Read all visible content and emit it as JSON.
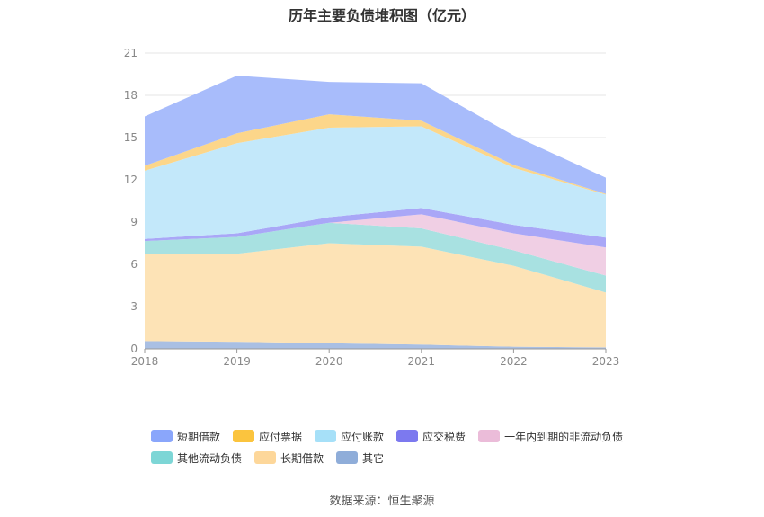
{
  "title": "历年主要负债堆积图（亿元）",
  "source": "数据来源：恒生聚源",
  "chart_data": {
    "type": "area",
    "stacked": true,
    "x": [
      "2018",
      "2019",
      "2020",
      "2021",
      "2022",
      "2023"
    ],
    "ylim": [
      0,
      21
    ],
    "yticks": [
      0,
      3,
      6,
      9,
      12,
      15,
      18,
      21
    ],
    "grid": true,
    "legend_position": "bottom",
    "series": [
      {
        "name": "其它",
        "color": "#a9bfe3",
        "values": [
          0.55,
          0.5,
          0.4,
          0.3,
          0.15,
          0.1
        ]
      },
      {
        "name": "长期借款",
        "color": "#fde3b6",
        "values": [
          6.15,
          6.25,
          7.1,
          6.95,
          5.75,
          3.9
        ]
      },
      {
        "name": "其他流动负债",
        "color": "#a8e1e1",
        "values": [
          0.95,
          1.2,
          1.45,
          1.3,
          1.1,
          1.2
        ]
      },
      {
        "name": "一年内到期的非流动负债",
        "color": "#f0cfe4",
        "values": [
          0.0,
          0.0,
          0.0,
          1.0,
          1.2,
          2.0
        ]
      },
      {
        "name": "应交税费",
        "color": "#a9a7f7",
        "values": [
          0.15,
          0.25,
          0.4,
          0.45,
          0.6,
          0.7
        ]
      },
      {
        "name": "应付账款",
        "color": "#c3e8fa",
        "values": [
          4.85,
          6.4,
          6.35,
          5.8,
          4.05,
          3.05
        ]
      },
      {
        "name": "应付票据",
        "color": "#fcd68a",
        "values": [
          0.35,
          0.7,
          0.95,
          0.4,
          0.2,
          0.05
        ]
      },
      {
        "name": "短期借款",
        "color": "#a8bcfb",
        "values": [
          3.5,
          4.1,
          2.3,
          2.65,
          2.1,
          1.15
        ]
      }
    ]
  },
  "legend": [
    [
      {
        "label": "短期借款",
        "color": "#8aa6fb"
      },
      {
        "label": "应付票据",
        "color": "#fbc43e"
      },
      {
        "label": "应付账款",
        "color": "#a6e0f8"
      },
      {
        "label": "应交税费",
        "color": "#7c79ef"
      },
      {
        "label": "一年内到期的非流动负债",
        "color": "#ebbcd9"
      }
    ],
    [
      {
        "label": "其他流动负债",
        "color": "#7dd6d6"
      },
      {
        "label": "长期借款",
        "color": "#fdd79a"
      },
      {
        "label": "其它",
        "color": "#8fadd9"
      }
    ]
  ]
}
